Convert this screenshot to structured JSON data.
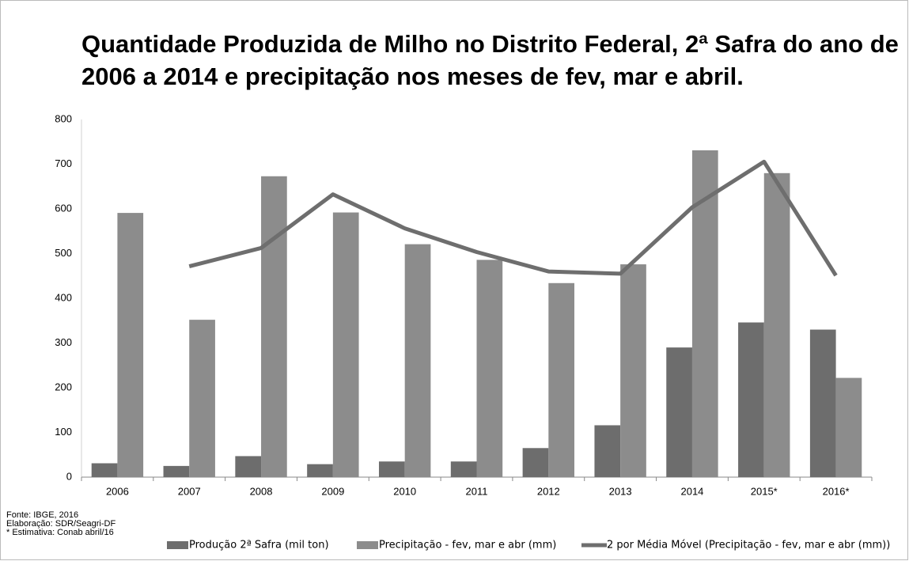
{
  "chart_data": {
    "type": "bar",
    "title": [
      "Quantidade Produzida de Milho no Distrito Federal, 2ª Safra do ano de",
      "2006 a 2014 e precipitação nos meses de fev, mar e abril."
    ],
    "categories": [
      "2006",
      "2007",
      "2008",
      "2009",
      "2010",
      "2011",
      "2012",
      "2013",
      "2014",
      "2015*",
      "2016*"
    ],
    "series": [
      {
        "name": "Produção 2ª Safra (mil ton)",
        "color": "#6d6d6d",
        "type": "bar",
        "values": [
          31,
          25,
          47,
          29,
          35,
          35,
          65,
          116,
          290,
          346,
          330
        ]
      },
      {
        "name": "Precipitação - fev, mar e abr (mm)",
        "color": "#8c8c8c",
        "type": "bar",
        "values": [
          591,
          352,
          673,
          592,
          521,
          486,
          434,
          476,
          731,
          680,
          222
        ]
      },
      {
        "name": "2 por Média Móvel (Precipitação - fev, mar e abr (mm))",
        "color": "#6e6e6e",
        "type": "line",
        "values": [
          null,
          471.5,
          512.5,
          632.5,
          556.5,
          503.5,
          460,
          455,
          603.5,
          705.5,
          451
        ]
      }
    ],
    "ylim": [
      0,
      800
    ],
    "yticks": [
      0,
      100,
      200,
      300,
      400,
      500,
      600,
      700,
      800
    ],
    "grid": false,
    "legend": "bottom",
    "notes": [
      "Fonte: IBGE, 2016",
      "Elaboração: SDR/Seagri-DF",
      "* Estimativa: Conab abril/16"
    ]
  }
}
